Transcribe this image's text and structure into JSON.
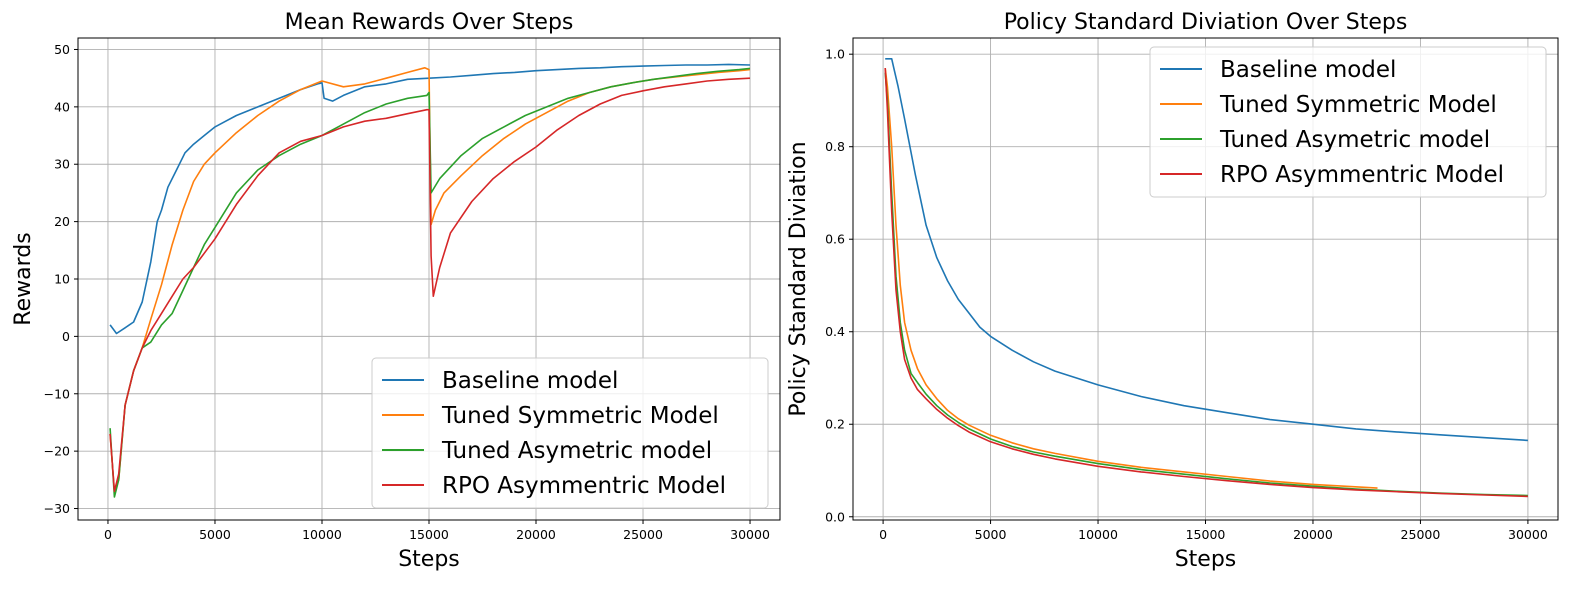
{
  "colors": {
    "baseline": "#1f77b4",
    "symmetric": "#ff7f0e",
    "asymmetric": "#2ca02c",
    "rpo": "#d62728",
    "grid": "#b0b0b0"
  },
  "chart_data": [
    {
      "type": "line",
      "title": "Mean Rewards Over Steps",
      "xlabel": "Steps",
      "ylabel": "Rewards",
      "xlim": [
        -1400,
        31400
      ],
      "ylim": [
        -32,
        52
      ],
      "xticks": [
        0,
        5000,
        10000,
        15000,
        20000,
        25000,
        30000
      ],
      "xtick_labels": [
        "0",
        "5000",
        "10000",
        "15000",
        "20000",
        "25000",
        "30000"
      ],
      "yticks": [
        -30,
        -20,
        -10,
        0,
        10,
        20,
        30,
        40,
        50
      ],
      "ytick_labels": [
        "−30",
        "−20",
        "−10",
        "0",
        "10",
        "20",
        "30",
        "40",
        "50"
      ],
      "grid": true,
      "legend_position": "lower-right",
      "series": [
        {
          "key": "baseline",
          "name": "Baseline model",
          "x": [
            100,
            400,
            800,
            1200,
            1600,
            2000,
            2300,
            2500,
            2800,
            3200,
            3600,
            4000,
            4500,
            5000,
            5500,
            6000,
            7000,
            8000,
            9000,
            9800,
            10000,
            10100,
            10500,
            11000,
            12000,
            13000,
            14000,
            15000,
            16000,
            17000,
            18000,
            19000,
            20000,
            21000,
            22000,
            23000,
            24000,
            25000,
            26000,
            27000,
            28000,
            29000,
            30000
          ],
          "y": [
            2,
            0.5,
            1.5,
            2.5,
            6,
            13,
            20,
            22,
            26,
            29,
            32,
            33.5,
            35,
            36.5,
            37.5,
            38.5,
            40,
            41.5,
            43,
            44,
            44.2,
            41.5,
            41,
            42,
            43.5,
            44,
            44.8,
            45,
            45.2,
            45.5,
            45.8,
            46,
            46.3,
            46.5,
            46.7,
            46.8,
            47,
            47.1,
            47.2,
            47.3,
            47.3,
            47.4,
            47.3
          ]
        },
        {
          "key": "symmetric",
          "name": "Tuned Symmetric Model",
          "x": [
            100,
            300,
            500,
            800,
            1200,
            1600,
            2000,
            2500,
            3000,
            3500,
            4000,
            4500,
            5000,
            6000,
            7000,
            8000,
            9000,
            10000,
            11000,
            12000,
            13000,
            14000,
            14800,
            15000,
            15100,
            15300,
            15700,
            16500,
            17500,
            18500,
            19500,
            20500,
            21500,
            22500,
            23500,
            24500,
            25500,
            26500,
            27500,
            28500,
            29500,
            30000
          ],
          "y": [
            -17,
            -27,
            -25,
            -12,
            -6,
            -2,
            3,
            9,
            16,
            22,
            27,
            30,
            32,
            35.5,
            38.5,
            41,
            43,
            44.5,
            43.5,
            44,
            45,
            46,
            46.8,
            46.5,
            19.5,
            22,
            25,
            28,
            31.5,
            34.5,
            37,
            39,
            41,
            42.5,
            43.5,
            44.2,
            44.8,
            45.2,
            45.6,
            46,
            46.3,
            46.5
          ]
        },
        {
          "key": "asymmetric",
          "name": "Tuned Asymetric model",
          "x": [
            100,
            300,
            500,
            800,
            1200,
            1600,
            2000,
            2500,
            3000,
            3500,
            4000,
            4500,
            5000,
            6000,
            7000,
            8000,
            9000,
            10000,
            11000,
            12000,
            13000,
            14000,
            14900,
            15000,
            15100,
            15500,
            16500,
            17500,
            18500,
            19500,
            20500,
            21500,
            22500,
            23500,
            24500,
            25500,
            26500,
            27500,
            28500,
            29500,
            30000
          ],
          "y": [
            -16,
            -28,
            -25,
            -12,
            -6,
            -2,
            -1,
            2,
            4,
            8,
            12,
            16,
            19,
            25,
            29,
            31.5,
            33.5,
            35,
            37,
            39,
            40.5,
            41.5,
            42,
            42.5,
            25,
            27.5,
            31.5,
            34.5,
            36.5,
            38.5,
            40,
            41.5,
            42.5,
            43.5,
            44.2,
            44.8,
            45.3,
            45.8,
            46.2,
            46.5,
            46.7
          ]
        },
        {
          "key": "rpo",
          "name": "RPO Asymmentric Model",
          "x": [
            100,
            300,
            500,
            800,
            1200,
            1600,
            2000,
            2500,
            3000,
            3500,
            4000,
            4500,
            5000,
            6000,
            7000,
            8000,
            9000,
            10000,
            11000,
            12000,
            13000,
            14000,
            14900,
            15000,
            15100,
            15200,
            15500,
            16000,
            17000,
            18000,
            19000,
            20000,
            21000,
            22000,
            23000,
            24000,
            25000,
            26000,
            27000,
            28000,
            29000,
            30000
          ],
          "y": [
            -17,
            -27,
            -24,
            -12,
            -6,
            -2,
            1,
            4,
            7,
            10,
            12,
            14.5,
            17,
            23,
            28,
            32,
            34,
            35,
            36.5,
            37.5,
            38,
            38.8,
            39.5,
            39.5,
            14,
            7,
            12,
            18,
            23.5,
            27.5,
            30.5,
            33,
            36,
            38.5,
            40.5,
            42,
            42.8,
            43.5,
            44,
            44.5,
            44.8,
            45
          ]
        }
      ]
    },
    {
      "type": "line",
      "title": "Policy Standard Diviation Over Steps",
      "xlabel": "Steps",
      "ylabel": "Policy Standard Diviation",
      "xlim": [
        -1400,
        31400
      ],
      "ylim": [
        -0.007,
        1.035
      ],
      "xticks": [
        0,
        5000,
        10000,
        15000,
        20000,
        25000,
        30000
      ],
      "xtick_labels": [
        "0",
        "5000",
        "10000",
        "15000",
        "20000",
        "25000",
        "30000"
      ],
      "yticks": [
        0.0,
        0.2,
        0.4,
        0.6,
        0.8,
        1.0
      ],
      "ytick_labels": [
        "0.0",
        "0.2",
        "0.4",
        "0.6",
        "0.8",
        "1.0"
      ],
      "grid": true,
      "legend_position": "upper-right",
      "series": [
        {
          "key": "baseline",
          "name": "Baseline model",
          "x": [
            100,
            300,
            400,
            500,
            700,
            1000,
            1500,
            2000,
            2500,
            3000,
            3500,
            4000,
            4500,
            5000,
            6000,
            7000,
            8000,
            9000,
            10000,
            12000,
            14000,
            16000,
            18000,
            20000,
            22000,
            24000,
            26000,
            28000,
            30000
          ],
          "y": [
            0.99,
            0.99,
            0.99,
            0.97,
            0.93,
            0.86,
            0.74,
            0.63,
            0.56,
            0.51,
            0.47,
            0.44,
            0.41,
            0.39,
            0.36,
            0.335,
            0.315,
            0.3,
            0.285,
            0.26,
            0.24,
            0.225,
            0.21,
            0.2,
            0.19,
            0.183,
            0.177,
            0.171,
            0.165
          ]
        },
        {
          "key": "symmetric",
          "name": "Tuned Symmetric Model",
          "x": [
            100,
            200,
            400,
            600,
            800,
            1000,
            1300,
            1600,
            2000,
            2500,
            3000,
            3500,
            4000,
            5000,
            6000,
            7000,
            8000,
            10000,
            12000,
            14000,
            16000,
            18000,
            20000,
            23000
          ],
          "y": [
            0.97,
            0.93,
            0.8,
            0.63,
            0.5,
            0.42,
            0.36,
            0.32,
            0.285,
            0.255,
            0.23,
            0.212,
            0.198,
            0.176,
            0.16,
            0.147,
            0.137,
            0.12,
            0.107,
            0.097,
            0.087,
            0.077,
            0.07,
            0.062
          ]
        },
        {
          "key": "asymmetric",
          "name": "Tuned Asymetric model",
          "x": [
            100,
            200,
            400,
            600,
            800,
            1000,
            1300,
            1600,
            2000,
            2500,
            3000,
            3500,
            4000,
            5000,
            6000,
            7000,
            8000,
            10000,
            12000,
            14000,
            16000,
            18000,
            20000,
            22000,
            24000,
            26000,
            28000,
            30000
          ],
          "y": [
            0.96,
            0.9,
            0.7,
            0.52,
            0.42,
            0.36,
            0.31,
            0.29,
            0.265,
            0.24,
            0.22,
            0.204,
            0.19,
            0.168,
            0.152,
            0.14,
            0.131,
            0.115,
            0.102,
            0.092,
            0.082,
            0.073,
            0.066,
            0.06,
            0.055,
            0.051,
            0.048,
            0.046
          ]
        },
        {
          "key": "rpo",
          "name": "RPO Asymmentric Model",
          "x": [
            100,
            200,
            400,
            600,
            800,
            1000,
            1300,
            1600,
            2000,
            2500,
            3000,
            3500,
            4000,
            5000,
            6000,
            7000,
            8000,
            10000,
            12000,
            14000,
            16000,
            18000,
            20000,
            22000,
            24000,
            26000,
            28000,
            30000
          ],
          "y": [
            0.97,
            0.88,
            0.66,
            0.49,
            0.4,
            0.34,
            0.3,
            0.275,
            0.255,
            0.232,
            0.213,
            0.197,
            0.183,
            0.162,
            0.147,
            0.135,
            0.125,
            0.109,
            0.097,
            0.087,
            0.078,
            0.07,
            0.063,
            0.058,
            0.054,
            0.05,
            0.047,
            0.044
          ]
        }
      ]
    }
  ]
}
